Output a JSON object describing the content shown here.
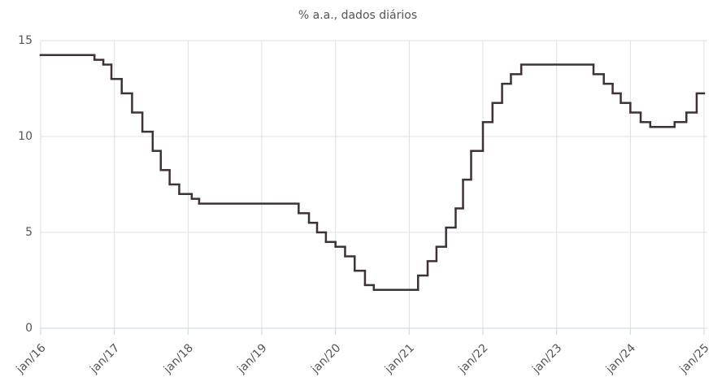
{
  "chart_data": {
    "type": "line",
    "step": "post",
    "title": "% a.a., dados diários",
    "color": "#3d3238",
    "xlim": [
      2016,
      2025
    ],
    "ylim": [
      0,
      15
    ],
    "xticks": [
      {
        "value": 2016,
        "label": "jan/16"
      },
      {
        "value": 2017,
        "label": "jan/17"
      },
      {
        "value": 2018,
        "label": "jan/18"
      },
      {
        "value": 2019,
        "label": "jan/19"
      },
      {
        "value": 2020,
        "label": "jan/20"
      },
      {
        "value": 2021,
        "label": "jan/21"
      },
      {
        "value": 2022,
        "label": "jan/22"
      },
      {
        "value": 2023,
        "label": "jan/23"
      },
      {
        "value": 2024,
        "label": "jan/24"
      },
      {
        "value": 2025,
        "label": "jan/25"
      }
    ],
    "yticks": [
      0,
      5,
      10,
      15
    ],
    "grid": true,
    "x": [
      2016,
      2016.73,
      2016.85,
      2016.96,
      2017.1,
      2017.24,
      2017.38,
      2017.52,
      2017.63,
      2017.75,
      2017.88,
      2018.05,
      2018.15,
      2019.5,
      2019.64,
      2019.75,
      2019.87,
      2020.0,
      2020.13,
      2020.26,
      2020.4,
      2020.52,
      2021.12,
      2021.25,
      2021.37,
      2021.5,
      2021.63,
      2021.73,
      2021.84,
      2022.0,
      2022.13,
      2022.26,
      2022.38,
      2022.52,
      2023.5,
      2023.64,
      2023.76,
      2023.87,
      2024.0,
      2024.14,
      2024.27,
      2024.6,
      2024.76,
      2024.9
    ],
    "values": [
      14.25,
      14.0,
      13.75,
      13.0,
      12.25,
      11.25,
      10.25,
      9.25,
      8.25,
      7.5,
      7.0,
      6.75,
      6.5,
      6.0,
      5.5,
      5.0,
      4.5,
      4.25,
      3.75,
      3.0,
      2.25,
      2.0,
      2.75,
      3.5,
      4.25,
      5.25,
      6.25,
      7.75,
      9.25,
      10.75,
      11.75,
      12.75,
      13.25,
      13.75,
      13.25,
      12.75,
      12.25,
      11.75,
      11.25,
      10.75,
      10.5,
      10.75,
      11.25,
      12.25
    ]
  }
}
